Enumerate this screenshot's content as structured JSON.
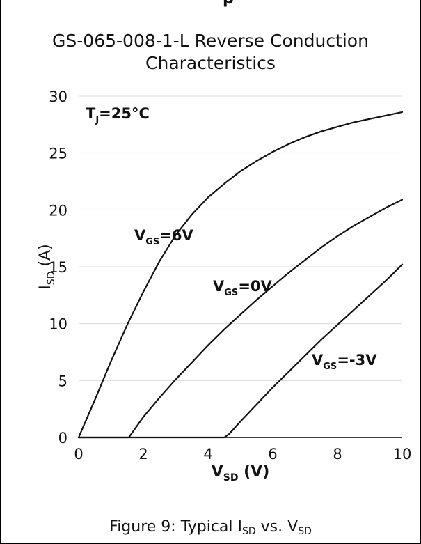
{
  "header_fragment": "p",
  "chart_data": {
    "type": "line",
    "title_lines": [
      "GS-065-008-1-L Reverse Conduction",
      "Characteristics"
    ],
    "xlabel": {
      "main": "V",
      "sub": "SD",
      "unit": " (V)"
    },
    "ylabel": {
      "main": "I",
      "sub": "SD",
      "unit": " (A)"
    },
    "xlim": [
      0,
      10
    ],
    "ylim": [
      0,
      30
    ],
    "x_ticks": [
      "0",
      "2",
      "4",
      "6",
      "8",
      "10"
    ],
    "y_ticks": [
      "0",
      "5",
      "10",
      "15",
      "20",
      "25",
      "30"
    ],
    "grid": "horizontal",
    "condition": {
      "main": "T",
      "sub": "J",
      "rest": "=25°C"
    },
    "series": [
      {
        "name": "V_GS=6V",
        "label": {
          "main": "V",
          "sub": "GS",
          "rest": "=6V"
        },
        "x": [
          0,
          0.5,
          1,
          1.5,
          2,
          2.5,
          3,
          3.5,
          4,
          4.5,
          5,
          5.5,
          6,
          6.5,
          7,
          7.5,
          8,
          8.5,
          9,
          9.5,
          10
        ],
        "y": [
          0,
          3.3,
          6.7,
          9.9,
          12.8,
          15.5,
          17.8,
          19.6,
          21.1,
          22.3,
          23.4,
          24.3,
          25.1,
          25.8,
          26.4,
          26.9,
          27.3,
          27.7,
          28.0,
          28.3,
          28.6
        ]
      },
      {
        "name": "V_GS=0V",
        "label": {
          "main": "V",
          "sub": "GS",
          "rest": "=0V"
        },
        "x": [
          0,
          1.55,
          2,
          2.5,
          3,
          3.5,
          4,
          4.5,
          5,
          5.5,
          6,
          6.5,
          7,
          7.5,
          8,
          8.5,
          9,
          9.5,
          10
        ],
        "y": [
          0,
          0,
          1.8,
          3.5,
          5.1,
          6.6,
          8.1,
          9.5,
          10.8,
          12.1,
          13.3,
          14.5,
          15.6,
          16.7,
          17.7,
          18.6,
          19.4,
          20.2,
          20.9
        ]
      },
      {
        "name": "V_GS=-3V",
        "label": {
          "main": "V",
          "sub": "GS",
          "rest": "=-3V"
        },
        "x": [
          0,
          4.5,
          4.65,
          5,
          5.5,
          6,
          6.5,
          7,
          7.5,
          8,
          8.5,
          9,
          9.5,
          10
        ],
        "y": [
          0,
          0,
          0.3,
          1.4,
          2.9,
          4.4,
          5.8,
          7.2,
          8.6,
          9.9,
          11.2,
          12.5,
          13.8,
          15.2
        ]
      }
    ]
  },
  "caption": {
    "text1": "Figure 9: Typical I",
    "sub1": "SD",
    "text2": " vs. V",
    "sub2": "SD"
  },
  "colors": {
    "line": "#111111",
    "grid": "#d9d9d9",
    "axis": "#000000"
  }
}
